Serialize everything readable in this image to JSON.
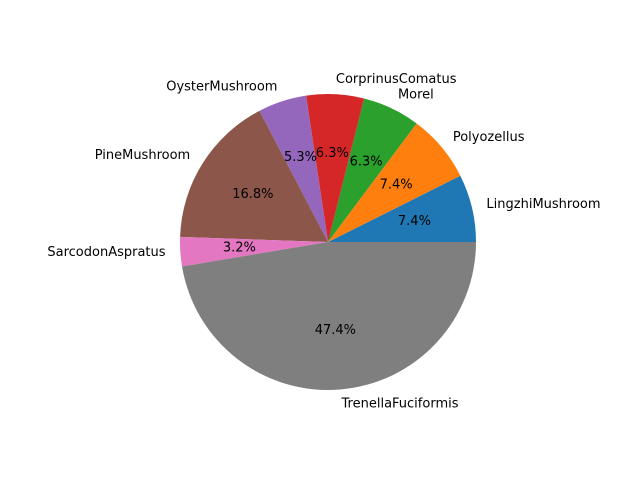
{
  "chart_data": {
    "type": "pie",
    "title": "",
    "start_angle_deg": 0,
    "direction": "counterclockwise",
    "slices": [
      {
        "label": "LingzhiMushroom",
        "percent": 7.4,
        "percent_label": "7.4%",
        "color": "#1f77b4"
      },
      {
        "label": "Polyozellus",
        "percent": 7.4,
        "percent_label": "7.4%",
        "color": "#ff7f0e"
      },
      {
        "label": "Morel",
        "percent": 6.3,
        "percent_label": "6.3%",
        "color": "#2ca02c"
      },
      {
        "label": "CorprinusComatus",
        "percent": 6.3,
        "percent_label": "6.3%",
        "color": "#d62728"
      },
      {
        "label": "OysterMushroom",
        "percent": 5.3,
        "percent_label": "5.3%",
        "color": "#9467bd"
      },
      {
        "label": "PineMushroom",
        "percent": 16.8,
        "percent_label": "16.8%",
        "color": "#8c564b"
      },
      {
        "label": "SarcodonAspratus",
        "percent": 3.2,
        "percent_label": "3.2%",
        "color": "#e377c2"
      },
      {
        "label": "TrenellaFuciformis",
        "percent": 47.4,
        "percent_label": "47.4%",
        "color": "#7f7f7f"
      }
    ]
  }
}
